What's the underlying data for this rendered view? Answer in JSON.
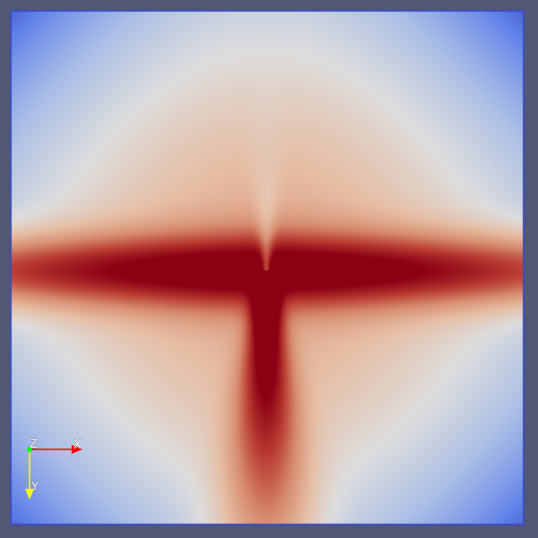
{
  "view": {
    "background_color": "#525873",
    "colormap": "Cool to Warm",
    "colormap_colors": {
      "low": "#3b4cc0",
      "mid": "#dddddd",
      "high": "#b40426",
      "peak": "#8b0012"
    }
  },
  "orientation_axes": {
    "x_label": "X",
    "y_label": "Y",
    "z_label": "Z",
    "x_color": "#ff0000",
    "y_color": "#ffff00",
    "z_color": "#00ff00"
  }
}
